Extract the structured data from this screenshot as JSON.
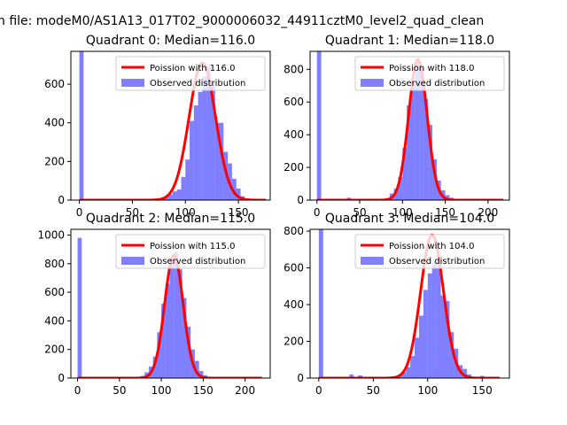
{
  "figure": {
    "suptitle": "n file: modeM0/AS1A13_017T02_9000006032_44911cztM0_level2_quad_clean"
  },
  "chart_data": [
    {
      "type": "bar",
      "title": "Quadrant 0: Median=116.0",
      "xlim": [
        -8,
        180
      ],
      "ylim": [
        0,
        770
      ],
      "xticks": [
        0,
        50,
        100,
        150
      ],
      "yticks": [
        0,
        200,
        400,
        600
      ],
      "bin_width": 4,
      "histogram": [
        [
          0,
          770
        ],
        [
          36,
          5
        ],
        [
          60,
          4
        ],
        [
          72,
          8
        ],
        [
          80,
          16
        ],
        [
          84,
          30
        ],
        [
          88,
          45
        ],
        [
          92,
          55
        ],
        [
          96,
          120
        ],
        [
          100,
          210
        ],
        [
          104,
          410
        ],
        [
          108,
          490
        ],
        [
          112,
          560
        ],
        [
          116,
          640
        ],
        [
          120,
          690
        ],
        [
          124,
          610
        ],
        [
          128,
          400
        ],
        [
          132,
          400
        ],
        [
          136,
          250
        ],
        [
          140,
          190
        ],
        [
          144,
          110
        ],
        [
          148,
          60
        ],
        [
          152,
          20
        ],
        [
          156,
          8
        ]
      ],
      "fit_curve": {
        "mu": 116.0,
        "peak": 710,
        "sigma": 12.5,
        "x_range": [
          0,
          176
        ]
      },
      "legend": [
        "Poission with 116.0",
        "Observed distribution"
      ],
      "legend_loc": "upper right"
    },
    {
      "type": "bar",
      "title": "Quadrant 1: Median=118.0",
      "xlim": [
        -8,
        225
      ],
      "ylim": [
        0,
        910
      ],
      "xticks": [
        0,
        50,
        100,
        150,
        200
      ],
      "yticks": [
        0,
        200,
        400,
        600,
        800
      ],
      "bin_width": 5,
      "histogram": [
        [
          0,
          910
        ],
        [
          35,
          15
        ],
        [
          65,
          5
        ],
        [
          80,
          12
        ],
        [
          85,
          40
        ],
        [
          90,
          70
        ],
        [
          95,
          140
        ],
        [
          100,
          320
        ],
        [
          105,
          580
        ],
        [
          110,
          720
        ],
        [
          115,
          840
        ],
        [
          120,
          810
        ],
        [
          125,
          620
        ],
        [
          130,
          460
        ],
        [
          135,
          250
        ],
        [
          140,
          120
        ],
        [
          145,
          60
        ],
        [
          150,
          30
        ],
        [
          155,
          15
        ]
      ],
      "fit_curve": {
        "mu": 118.0,
        "peak": 860,
        "sigma": 10.8,
        "x_range": [
          0,
          218
        ]
      },
      "legend": [
        "Poission with 118.0",
        "Observed distribution"
      ],
      "legend_loc": "upper right"
    },
    {
      "type": "bar",
      "title": "Quadrant 2: Median=115.0",
      "xlim": [
        -8,
        230
      ],
      "ylim": [
        0,
        1040
      ],
      "xticks": [
        0,
        50,
        100,
        150,
        200
      ],
      "yticks": [
        0,
        200,
        400,
        600,
        800,
        1000
      ],
      "bin_width": 5,
      "histogram": [
        [
          0,
          980
        ],
        [
          75,
          15
        ],
        [
          80,
          40
        ],
        [
          85,
          80
        ],
        [
          90,
          150
        ],
        [
          95,
          320
        ],
        [
          100,
          520
        ],
        [
          105,
          660
        ],
        [
          110,
          820
        ],
        [
          115,
          880
        ],
        [
          120,
          760
        ],
        [
          125,
          560
        ],
        [
          130,
          360
        ],
        [
          135,
          200
        ],
        [
          140,
          120
        ],
        [
          145,
          50
        ],
        [
          150,
          20
        ]
      ],
      "fit_curve": {
        "mu": 115.0,
        "peak": 860,
        "sigma": 11.0,
        "x_range": [
          0,
          220
        ]
      },
      "legend": [
        "Poission with 115.0",
        "Observed distribution"
      ],
      "legend_loc": "upper right"
    },
    {
      "type": "bar",
      "title": "Quadrant 3: Median=104.0",
      "xlim": [
        -8,
        175
      ],
      "ylim": [
        0,
        810
      ],
      "xticks": [
        0,
        50,
        100,
        150
      ],
      "yticks": [
        0,
        200,
        400,
        600,
        800
      ],
      "bin_width": 4,
      "histogram": [
        [
          0,
          810
        ],
        [
          28,
          20
        ],
        [
          36,
          15
        ],
        [
          56,
          6
        ],
        [
          64,
          8
        ],
        [
          72,
          12
        ],
        [
          76,
          30
        ],
        [
          80,
          60
        ],
        [
          84,
          120
        ],
        [
          88,
          220
        ],
        [
          92,
          340
        ],
        [
          96,
          480
        ],
        [
          100,
          570
        ],
        [
          104,
          630
        ],
        [
          108,
          640
        ],
        [
          112,
          450
        ],
        [
          116,
          420
        ],
        [
          120,
          250
        ],
        [
          124,
          160
        ],
        [
          128,
          70
        ],
        [
          132,
          50
        ],
        [
          136,
          20
        ],
        [
          148,
          12
        ],
        [
          156,
          6
        ]
      ],
      "fit_curve": {
        "mu": 104.0,
        "peak": 780,
        "sigma": 10.5,
        "x_range": [
          0,
          166
        ]
      },
      "legend": [
        "Poission with 104.0",
        "Observed distribution"
      ],
      "legend_loc": "upper right"
    }
  ]
}
